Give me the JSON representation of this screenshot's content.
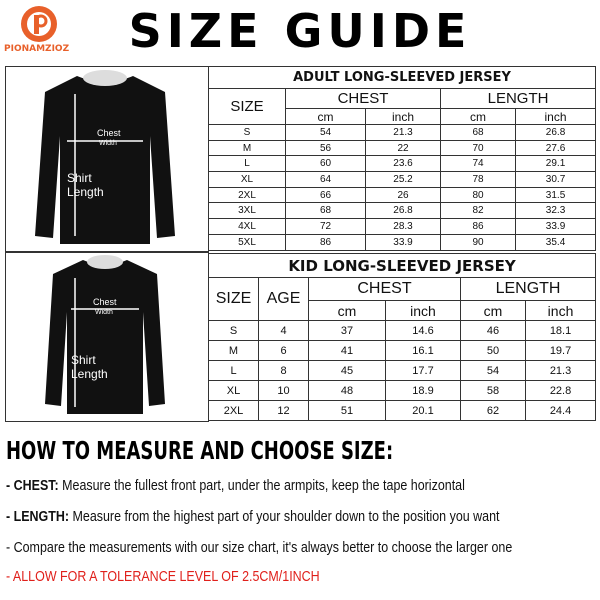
{
  "brand": "PIONAMZIOZ",
  "title": "SIZE GUIDE",
  "adult": {
    "title": "ADULT LONG-SLEEVED JERSEY",
    "headers": [
      "SIZE",
      "CHEST",
      "LENGTH"
    ],
    "units": [
      "cm",
      "inch",
      "cm",
      "inch"
    ],
    "rows": [
      [
        "S",
        54,
        21.3,
        68,
        26.8
      ],
      [
        "M",
        56,
        22,
        70,
        27.6
      ],
      [
        "L",
        60,
        23.6,
        74,
        29.1
      ],
      [
        "XL",
        64,
        25.2,
        78,
        30.7
      ],
      [
        "2XL",
        66,
        26,
        80,
        31.5
      ],
      [
        "3XL",
        68,
        26.8,
        82,
        32.3
      ],
      [
        "4XL",
        72,
        28.3,
        86,
        33.9
      ],
      [
        "5XL",
        86,
        33.9,
        90,
        35.4
      ]
    ]
  },
  "kid": {
    "title": "KID LONG-SLEEVED JERSEY",
    "headers": [
      "SIZE",
      "AGE",
      "CHEST",
      "LENGTH"
    ],
    "units": [
      "cm",
      "inch",
      "cm",
      "inch"
    ],
    "rows": [
      [
        "S",
        4,
        37,
        14.6,
        46,
        18.1
      ],
      [
        "M",
        6,
        41,
        16.1,
        50,
        19.7
      ],
      [
        "L",
        8,
        45,
        17.7,
        54,
        21.3
      ],
      [
        "XL",
        10,
        48,
        18.9,
        58,
        22.8
      ],
      [
        "2XL",
        12,
        51,
        20.1,
        62,
        24.4
      ]
    ]
  },
  "adult_figure": {
    "chest": "Chest",
    "width": "Width",
    "shirt": "Shirt",
    "length": "Length"
  },
  "kid_figure": {
    "chest": "Chest",
    "width": "Width",
    "shirt": "Shirt",
    "length": "Length"
  },
  "instructions": {
    "heading": "HOW TO MEASURE AND CHOOSE SIZE:",
    "items": [
      {
        "label": "- CHEST:",
        "text": "Measure the fullest front part, under the armpits, keep the tape horizontal"
      },
      {
        "label": "- LENGTH:",
        "text": "Measure from the highest part of your shoulder down to the position you want"
      },
      {
        "text": "- Compare the measurements with our size chart, it's always better to choose the larger one"
      },
      {
        "text": "- ALLOW FOR A TOLERANCE LEVEL OF 2.5CM/1INCH"
      }
    ]
  }
}
